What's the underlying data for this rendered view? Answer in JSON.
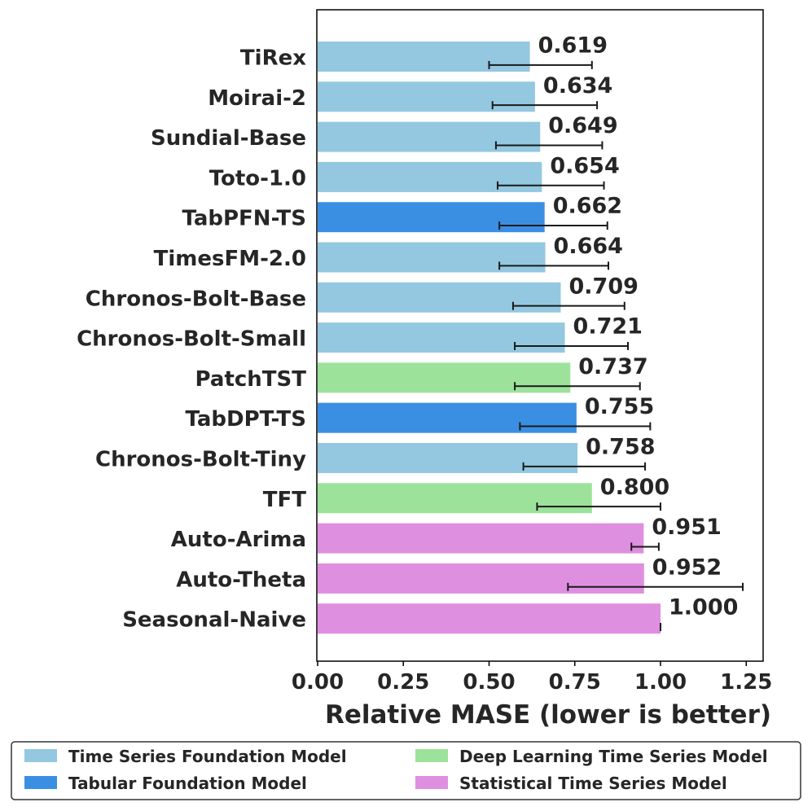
{
  "chart_data": {
    "type": "bar",
    "orientation": "horizontal",
    "xlabel": "Relative MASE (lower is better)",
    "ylabel": "",
    "xlim": [
      0,
      1.3
    ],
    "xticks": [
      0.0,
      0.25,
      0.5,
      0.75,
      1.0,
      1.25
    ],
    "xtick_labels": [
      "0.00",
      "0.25",
      "0.50",
      "0.75",
      "1.00",
      "1.25"
    ],
    "grid": false,
    "legend_position": "bottom",
    "groups": [
      {
        "name": "Time Series Foundation Model",
        "color": "#93c8e0"
      },
      {
        "name": "Deep Learning Time Series Model",
        "color": "#9de29a"
      },
      {
        "name": "Tabular Foundation Model",
        "color": "#3a8fe3"
      },
      {
        "name": "Statistical Time Series Model",
        "color": "#df8fe0"
      }
    ],
    "bars": [
      {
        "category": "TiRex",
        "value": 0.619,
        "label": "0.619",
        "group": 0,
        "err": [
          0.5,
          0.8
        ]
      },
      {
        "category": "Moirai-2",
        "value": 0.634,
        "label": "0.634",
        "group": 0,
        "err": [
          0.51,
          0.815
        ]
      },
      {
        "category": "Sundial-Base",
        "value": 0.649,
        "label": "0.649",
        "group": 0,
        "err": [
          0.52,
          0.83
        ]
      },
      {
        "category": "Toto-1.0",
        "value": 0.654,
        "label": "0.654",
        "group": 0,
        "err": [
          0.525,
          0.835
        ]
      },
      {
        "category": "TabPFN-TS",
        "value": 0.662,
        "label": "0.662",
        "group": 2,
        "err": [
          0.53,
          0.845
        ]
      },
      {
        "category": "TimesFM-2.0",
        "value": 0.664,
        "label": "0.664",
        "group": 0,
        "err": [
          0.53,
          0.848
        ]
      },
      {
        "category": "Chronos-Bolt-Base",
        "value": 0.709,
        "label": "0.709",
        "group": 0,
        "err": [
          0.57,
          0.895
        ]
      },
      {
        "category": "Chronos-Bolt-Small",
        "value": 0.721,
        "label": "0.721",
        "group": 0,
        "err": [
          0.575,
          0.905
        ]
      },
      {
        "category": "PatchTST",
        "value": 0.737,
        "label": "0.737",
        "group": 1,
        "err": [
          0.575,
          0.94
        ]
      },
      {
        "category": "TabDPT-TS",
        "value": 0.755,
        "label": "0.755",
        "group": 2,
        "err": [
          0.59,
          0.97
        ]
      },
      {
        "category": "Chronos-Bolt-Tiny",
        "value": 0.758,
        "label": "0.758",
        "group": 0,
        "err": [
          0.6,
          0.955
        ]
      },
      {
        "category": "TFT",
        "value": 0.8,
        "label": "0.800",
        "group": 1,
        "err": [
          0.64,
          1.0
        ]
      },
      {
        "category": "Auto-Arima",
        "value": 0.951,
        "label": "0.951",
        "group": 3,
        "err": [
          0.915,
          0.995
        ]
      },
      {
        "category": "Auto-Theta",
        "value": 0.952,
        "label": "0.952",
        "group": 3,
        "err": [
          0.73,
          1.24
        ]
      },
      {
        "category": "Seasonal-Naive",
        "value": 1.0,
        "label": "1.000",
        "group": 3,
        "err": [
          1.0,
          1.0
        ]
      }
    ]
  }
}
